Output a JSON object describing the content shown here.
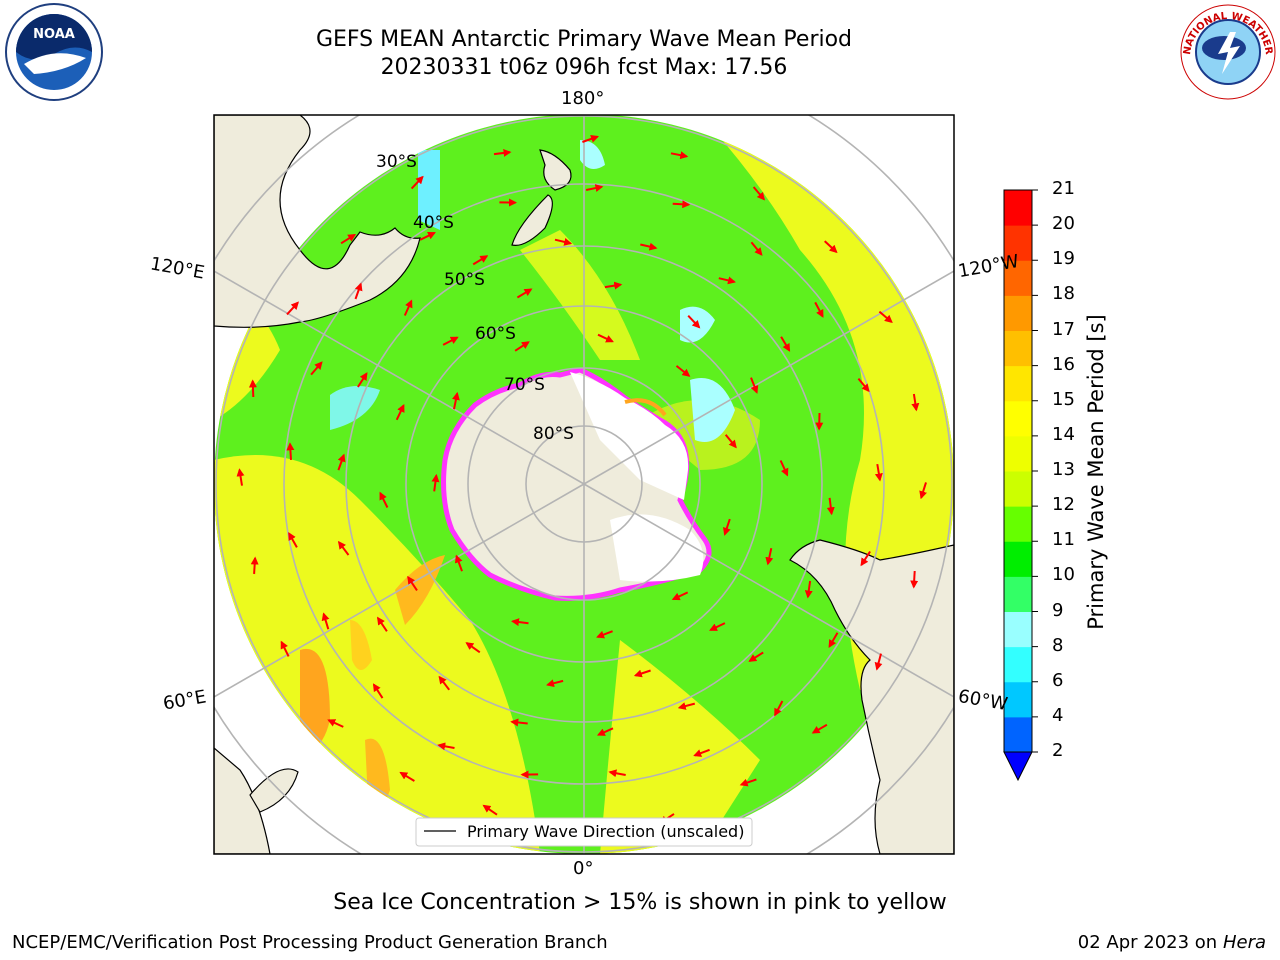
{
  "title_line1": "GEFS MEAN Antarctic Primary Wave Mean Period",
  "title_line2": "20230331 t06z 096h fcst   Max: 17.56",
  "map": {
    "longitude_labels": [
      "180°",
      "120°E",
      "120°W",
      "60°E",
      "60°W",
      "0°"
    ],
    "latitude_labels": [
      "30°S",
      "40°S",
      "50°S",
      "60°S",
      "70°S",
      "80°S"
    ],
    "legend_text": "Primary Wave Direction (unscaled)",
    "colors": {
      "land": "#efecdc",
      "ocean_green": "#5ef01e",
      "ocean_yellow": "#ecfa1e",
      "ice": "#ff33ff",
      "arrow": "#ff0000"
    }
  },
  "colorbar": {
    "label": "Primary Wave Mean Period [s]",
    "ticks": [
      "2",
      "4",
      "6",
      "8",
      "9",
      "10",
      "11",
      "12",
      "13",
      "14",
      "15",
      "16",
      "17",
      "18",
      "19",
      "20",
      "21"
    ],
    "colors": [
      "#0064ff",
      "#00c8ff",
      "#33ffff",
      "#99ffff",
      "#33ff66",
      "#00ee00",
      "#66ff00",
      "#ccff00",
      "#eeff00",
      "#ffff00",
      "#ffe600",
      "#ffbf00",
      "#ff9900",
      "#ff6600",
      "#ff3300",
      "#ff0000"
    ],
    "extend_color": "#0000ff"
  },
  "caption": "Sea Ice Concentration > 15% is shown in pink to yellow",
  "credit": "NCEP/EMC/Verification Post Processing Product Generation Branch",
  "date_prefix": "02 Apr 2023 on ",
  "date_machine": "Hera",
  "logos": {
    "noaa": "NOAA",
    "nws": "NATIONAL WEATHER SERVICE"
  }
}
